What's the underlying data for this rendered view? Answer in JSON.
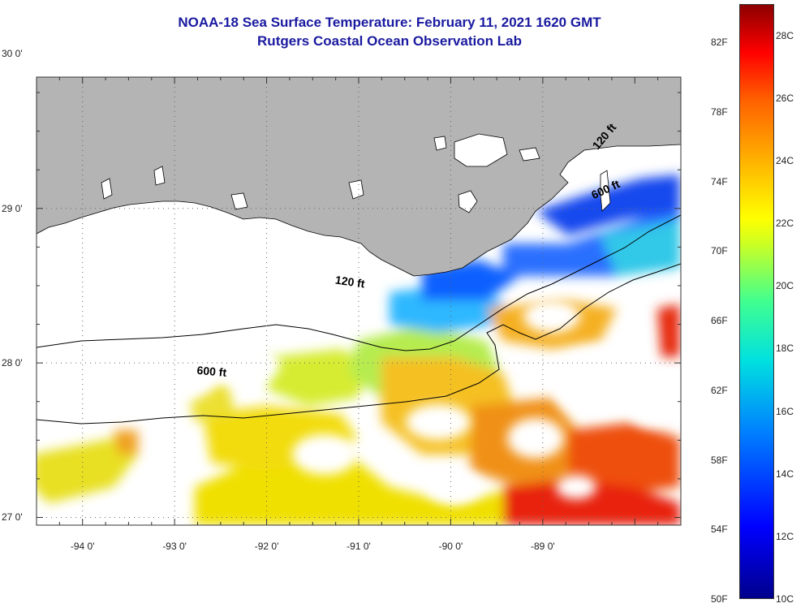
{
  "title_line1": "NOAA-18 Sea Surface Temperature:  February 11, 2021 1620 GMT",
  "title_line2": "Rutgers Coastal Ocean Observation Lab",
  "map": {
    "lon_range": [
      -94.5,
      -87.5
    ],
    "lat_range": [
      26.95,
      29.85
    ],
    "lat_ticks": [
      {
        "value": 30,
        "label": "30 0'"
      },
      {
        "value": 29,
        "label": "29 0'"
      },
      {
        "value": 28,
        "label": "28 0'"
      },
      {
        "value": 27,
        "label": "27 0'"
      }
    ],
    "lon_ticks": [
      {
        "value": -94,
        "label": "-94 0'"
      },
      {
        "value": -93,
        "label": "-93 0'"
      },
      {
        "value": -92,
        "label": "-92 0'"
      },
      {
        "value": -91,
        "label": "-91 0'"
      },
      {
        "value": -90,
        "label": "-90 0'"
      },
      {
        "value": -89,
        "label": "-89 0'"
      }
    ],
    "isobath_labels": [
      {
        "label": "120 ft",
        "lon": -91.1,
        "lat": 28.5
      },
      {
        "label": "600 ft",
        "lon": -92.6,
        "lat": 27.92
      },
      {
        "label": "120 ft",
        "lon": -88.3,
        "lat": 29.45
      },
      {
        "label": "600 ft",
        "lon": -88.3,
        "lat": 29.1
      }
    ],
    "land_color": "#b4b4b4",
    "grid": true
  },
  "colorbar": {
    "f_labels": [
      "82F",
      "78F",
      "74F",
      "70F",
      "66F",
      "62F",
      "58F",
      "54F",
      "50F"
    ],
    "c_labels": [
      "28C",
      "26C",
      "24C",
      "22C",
      "20C",
      "18C",
      "16C",
      "14C",
      "12C",
      "10C"
    ],
    "min_c": 10,
    "max_c": 29,
    "colors": [
      "#00008c",
      "#0000ff",
      "#0080ff",
      "#00e0e0",
      "#40ff90",
      "#d0ff20",
      "#ffff00",
      "#ffb000",
      "#ff6000",
      "#ff0000",
      "#8c0000"
    ]
  }
}
